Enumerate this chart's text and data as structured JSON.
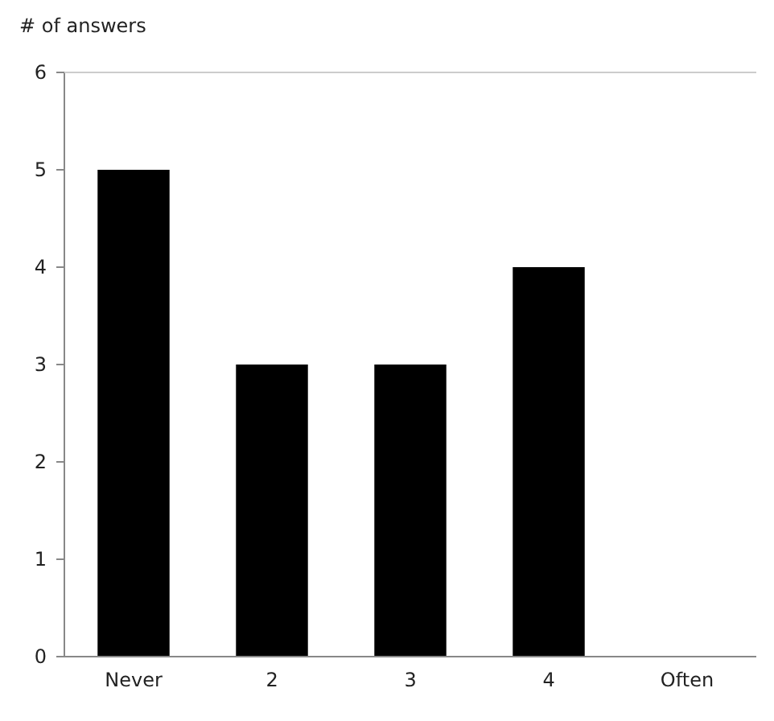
{
  "chart_data": {
    "type": "bar",
    "ylabel": "# of answers",
    "categories": [
      "Never",
      "2",
      "3",
      "4",
      "Often"
    ],
    "values": [
      5,
      3,
      3,
      4,
      0
    ],
    "color": "#000000",
    "ylim": [
      0,
      6
    ],
    "yticks": [
      0,
      1,
      2,
      3,
      4,
      5,
      6
    ],
    "grid": false
  }
}
